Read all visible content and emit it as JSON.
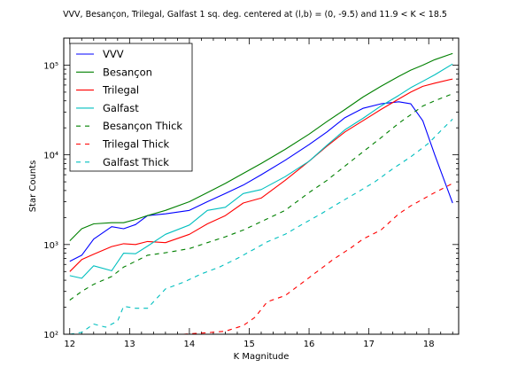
{
  "chart_data": {
    "type": "line",
    "title": "VVV, Besançon, Trilegal, Galfast 1 sq. deg. centered at (l,b) = (0, -9.5) and 11.9 < K < 18.5",
    "xlabel": "K Magnitude",
    "ylabel": "Star Counts",
    "xlim": [
      11.9,
      18.5
    ],
    "ylim": [
      100,
      200000
    ],
    "yscale": "log",
    "x_ticks": [
      12,
      13,
      14,
      15,
      16,
      17,
      18
    ],
    "x_tick_labels": [
      "12",
      "13",
      "14",
      "15",
      "16",
      "17",
      "18"
    ],
    "y_ticks": [
      100,
      1000,
      10000,
      100000
    ],
    "y_tick_labels": [
      "10²",
      "10³",
      "10⁴",
      "10⁵"
    ],
    "grid": false,
    "legend_position": "top-left",
    "series": [
      {
        "name": "VVV",
        "color": "#0000ff",
        "dash": "solid",
        "x": [
          12.0,
          12.2,
          12.4,
          12.7,
          12.9,
          13.1,
          13.3,
          13.6,
          14.0,
          14.3,
          14.6,
          14.9,
          15.2,
          15.6,
          16.0,
          16.3,
          16.6,
          16.9,
          17.2,
          17.5,
          17.7,
          17.9,
          18.1,
          18.4
        ],
        "y": [
          650,
          760,
          1150,
          1580,
          1500,
          1670,
          2100,
          2200,
          2400,
          3000,
          3700,
          4600,
          6000,
          8700,
          13000,
          18000,
          26000,
          33000,
          37000,
          39000,
          37000,
          24000,
          10000,
          2900
        ]
      },
      {
        "name": "Besançon",
        "color": "#008000",
        "dash": "solid",
        "x": [
          12.0,
          12.2,
          12.4,
          12.7,
          12.9,
          13.1,
          13.3,
          13.6,
          14.0,
          14.3,
          14.6,
          14.9,
          15.2,
          15.6,
          16.0,
          16.3,
          16.6,
          16.9,
          17.2,
          17.5,
          17.7,
          17.9,
          18.1,
          18.4
        ],
        "y": [
          1100,
          1500,
          1700,
          1750,
          1750,
          1900,
          2100,
          2400,
          3000,
          3800,
          4800,
          6200,
          8000,
          11500,
          17000,
          23500,
          32000,
          44000,
          58000,
          75000,
          88000,
          100000,
          115000,
          135000
        ]
      },
      {
        "name": "Trilegal",
        "color": "#ff0000",
        "dash": "solid",
        "x": [
          12.0,
          12.2,
          12.4,
          12.7,
          12.9,
          13.1,
          13.3,
          13.6,
          14.0,
          14.3,
          14.6,
          14.9,
          15.2,
          15.6,
          16.0,
          16.3,
          16.6,
          16.9,
          17.2,
          17.5,
          17.7,
          17.9,
          18.1,
          18.4
        ],
        "y": [
          500,
          680,
          780,
          950,
          1020,
          1000,
          1080,
          1050,
          1300,
          1700,
          2100,
          2900,
          3300,
          5200,
          8500,
          12500,
          18000,
          24000,
          32000,
          42000,
          50000,
          58000,
          63000,
          70000
        ]
      },
      {
        "name": "Galfast",
        "color": "#00bfbf",
        "dash": "solid",
        "x": [
          12.0,
          12.2,
          12.4,
          12.7,
          12.9,
          13.1,
          13.3,
          13.6,
          14.0,
          14.3,
          14.6,
          14.9,
          15.2,
          15.6,
          16.0,
          16.3,
          16.6,
          16.9,
          17.2,
          17.5,
          17.7,
          17.9,
          18.1,
          18.4
        ],
        "y": [
          450,
          420,
          580,
          510,
          800,
          790,
          960,
          1300,
          1650,
          2400,
          2600,
          3700,
          4100,
          5700,
          8500,
          12800,
          19000,
          25500,
          35000,
          46000,
          56000,
          66000,
          78000,
          103000
        ]
      },
      {
        "name": "Besançon Thick",
        "color": "#008000",
        "dash": "dashed",
        "x": [
          12.0,
          12.2,
          12.4,
          12.7,
          12.9,
          13.1,
          13.3,
          13.6,
          14.0,
          14.3,
          14.6,
          14.9,
          15.2,
          15.6,
          16.0,
          16.3,
          16.6,
          16.9,
          17.2,
          17.5,
          17.7,
          17.9,
          18.1,
          18.4
        ],
        "y": [
          240,
          300,
          360,
          440,
          560,
          650,
          760,
          810,
          900,
          1050,
          1220,
          1450,
          1800,
          2400,
          3800,
          5200,
          7500,
          10800,
          15500,
          22500,
          28000,
          35000,
          40000,
          48000
        ]
      },
      {
        "name": "Trilegal Thick",
        "color": "#ff0000",
        "dash": "dashed",
        "x": [
          13.9,
          14.1,
          14.3,
          14.6,
          14.9,
          15.1,
          15.3,
          15.6,
          15.9,
          16.1,
          16.4,
          16.7,
          16.9,
          17.2,
          17.5,
          17.7,
          17.9,
          18.1,
          18.4
        ],
        "y": [
          100,
          102,
          104,
          108,
          125,
          155,
          230,
          270,
          380,
          480,
          680,
          920,
          1150,
          1450,
          2200,
          2700,
          3200,
          3800,
          4800
        ]
      },
      {
        "name": "Galfast Thick",
        "color": "#00bfbf",
        "dash": "dashed",
        "x": [
          12.0,
          12.2,
          12.4,
          12.6,
          12.8,
          12.9,
          13.1,
          13.3,
          13.4,
          13.6,
          13.9,
          14.2,
          14.5,
          14.8,
          15.1,
          15.3,
          15.6,
          15.9,
          16.2,
          16.5,
          16.8,
          17.1,
          17.4,
          17.7,
          18.0,
          18.2,
          18.4
        ],
        "y": [
          100,
          105,
          130,
          120,
          140,
          205,
          195,
          195,
          230,
          320,
          380,
          470,
          560,
          700,
          900,
          1070,
          1300,
          1700,
          2200,
          2900,
          3800,
          5000,
          7000,
          9500,
          13500,
          18500,
          25000
        ]
      }
    ]
  }
}
